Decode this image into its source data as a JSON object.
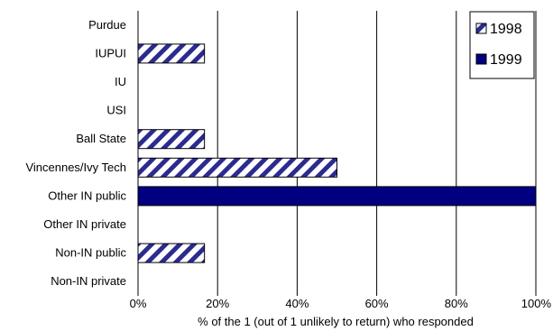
{
  "chart_data": {
    "type": "bar",
    "orientation": "horizontal",
    "title": "",
    "categories": [
      "Purdue",
      "IUPUI",
      "IU",
      "USI",
      "Ball State",
      "Vincennes/Ivy Tech",
      "Other IN public",
      "Other IN private",
      "Non-IN public",
      "Non-IN private"
    ],
    "series": [
      {
        "name": "1998",
        "values": [
          0,
          16.7,
          0,
          0,
          16.7,
          50,
          0,
          0,
          16.7,
          0
        ]
      },
      {
        "name": "1999",
        "values": [
          0,
          0,
          0,
          0,
          0,
          0,
          100,
          0,
          0,
          0
        ]
      }
    ],
    "xlabel": "% of the 1 (out of 1 unlikely to return) who responded",
    "ylabel": "",
    "xlim": [
      0,
      100
    ],
    "xticks": [
      "0%",
      "20%",
      "40%",
      "60%",
      "80%",
      "100%"
    ],
    "grid": "vertical",
    "legend": "top-right",
    "colors": {
      "1998_pattern": "#2b2b8f",
      "1999": "#000080",
      "grid": "#000000"
    }
  }
}
